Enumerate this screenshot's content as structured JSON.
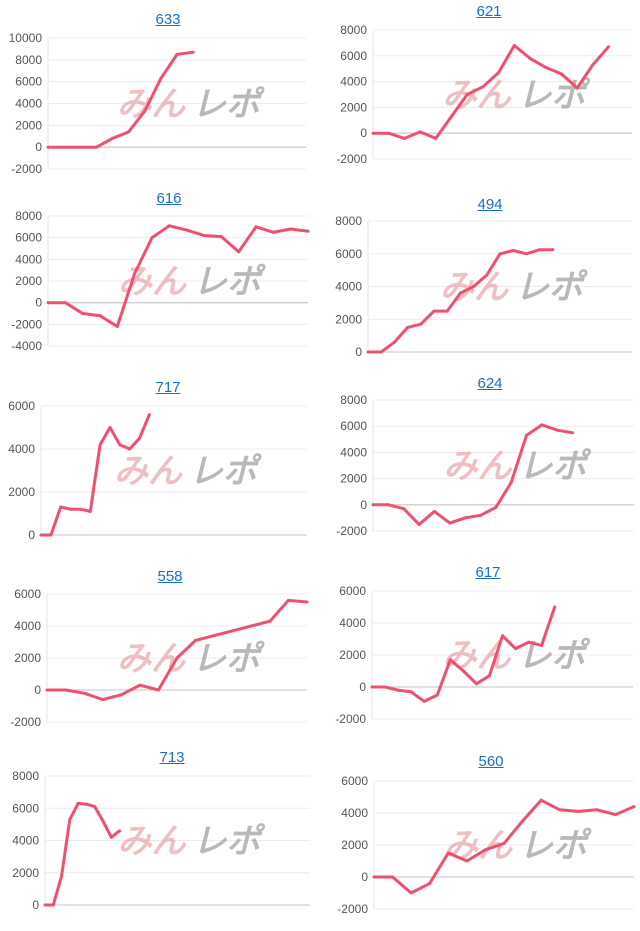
{
  "watermark": {
    "part1": "みん",
    "part2": "レポ",
    "color1": "#e9a9ae",
    "color2": "#a8a8a8"
  },
  "line_color": "#f0506e",
  "title_color": "#1a6fc9",
  "chart_data": [
    {
      "type": "line",
      "title": "633",
      "ylim": [
        -2000,
        10000
      ],
      "yticks": [
        "10000",
        "8000",
        "6000",
        "4000",
        "2000",
        "0",
        "-2000"
      ],
      "xlim": [
        0,
        16
      ],
      "values": [
        0,
        0,
        0,
        0,
        800,
        1400,
        3300,
        6300,
        8500,
        8700
      ],
      "grid": true
    },
    {
      "type": "line",
      "title": "621",
      "ylim": [
        -2000,
        8000
      ],
      "yticks": [
        "8000",
        "6000",
        "4000",
        "2000",
        "0",
        "-2000"
      ],
      "xlim": [
        0,
        16.5
      ],
      "values": [
        0,
        0,
        -400,
        100,
        -400,
        1300,
        3000,
        3600,
        4700,
        6800,
        5800,
        5100,
        4600,
        3500,
        5300,
        6700
      ],
      "grid": true
    },
    {
      "type": "line",
      "title": "616",
      "ylim": [
        -4000,
        8000
      ],
      "yticks": [
        "8000",
        "6000",
        "4000",
        "2000",
        "0",
        "-2000",
        "-4000"
      ],
      "xlim": [
        0,
        15
      ],
      "values": [
        0,
        0,
        -1000,
        -1200,
        -2200,
        2700,
        6000,
        7100,
        6700,
        6200,
        6100,
        4700,
        7000,
        6500,
        6800,
        6600
      ],
      "grid": true
    },
    {
      "type": "line",
      "title": "494",
      "ylim": [
        0,
        8000
      ],
      "yticks": [
        "8000",
        "6000",
        "4000",
        "2000",
        "0"
      ],
      "xlim": [
        0,
        20
      ],
      "values": [
        0,
        0,
        600,
        1500,
        1700,
        2500,
        2500,
        3600,
        4000,
        4700,
        6000,
        6200,
        6000,
        6250,
        6250
      ],
      "grid": true
    },
    {
      "type": "line",
      "title": "717",
      "ylim": [
        0,
        6000
      ],
      "yticks": [
        "6000",
        "4000",
        "2000",
        "0"
      ],
      "xlim": [
        0,
        27
      ],
      "values": [
        0,
        0,
        1300,
        1200,
        1200,
        1100,
        4200,
        5000,
        4200,
        4000,
        4500,
        5600
      ],
      "grid": true
    },
    {
      "type": "line",
      "title": "624",
      "ylim": [
        -2000,
        8000
      ],
      "yticks": [
        "8000",
        "6000",
        "4000",
        "2000",
        "0",
        "-2000"
      ],
      "xlim": [
        0,
        17
      ],
      "values": [
        0,
        0,
        -300,
        -1500,
        -500,
        -1400,
        -1000,
        -800,
        -200,
        1700,
        5300,
        6100,
        5700,
        5500
      ],
      "grid": true
    },
    {
      "type": "line",
      "title": "558",
      "ylim": [
        -2000,
        6000
      ],
      "yticks": [
        "6000",
        "4000",
        "2000",
        "0",
        "-2000"
      ],
      "xlim": [
        0,
        14
      ],
      "values": [
        0,
        0,
        -200,
        -600,
        -300,
        300,
        0,
        2000,
        3100,
        3400,
        3700,
        4000,
        4300,
        5600,
        5500
      ],
      "grid": true
    },
    {
      "type": "line",
      "title": "617",
      "ylim": [
        -2000,
        6000
      ],
      "yticks": [
        "6000",
        "4000",
        "2000",
        "0",
        "-2000"
      ],
      "xlim": [
        0,
        20
      ],
      "values": [
        0,
        0,
        -200,
        -300,
        -900,
        -500,
        1700,
        1000,
        200,
        700,
        3200,
        2400,
        2800,
        2600,
        5000
      ],
      "grid": true
    },
    {
      "type": "line",
      "title": "713",
      "ylim": [
        0,
        8000
      ],
      "yticks": [
        "8000",
        "6000",
        "4000",
        "2000",
        "0"
      ],
      "xlim": [
        0,
        32
      ],
      "values": [
        0,
        0,
        1800,
        5300,
        6300,
        6250,
        6100,
        5200,
        4200,
        4600
      ],
      "grid": true
    },
    {
      "type": "line",
      "title": "560",
      "ylim": [
        -2000,
        6000
      ],
      "yticks": [
        "6000",
        "4000",
        "2000",
        "0",
        "-2000"
      ],
      "xlim": [
        0,
        14
      ],
      "values": [
        0,
        0,
        -1000,
        -400,
        1500,
        1000,
        1700,
        2100,
        3500,
        4800,
        4200,
        4100,
        4200,
        3900,
        4400
      ],
      "grid": true
    }
  ]
}
